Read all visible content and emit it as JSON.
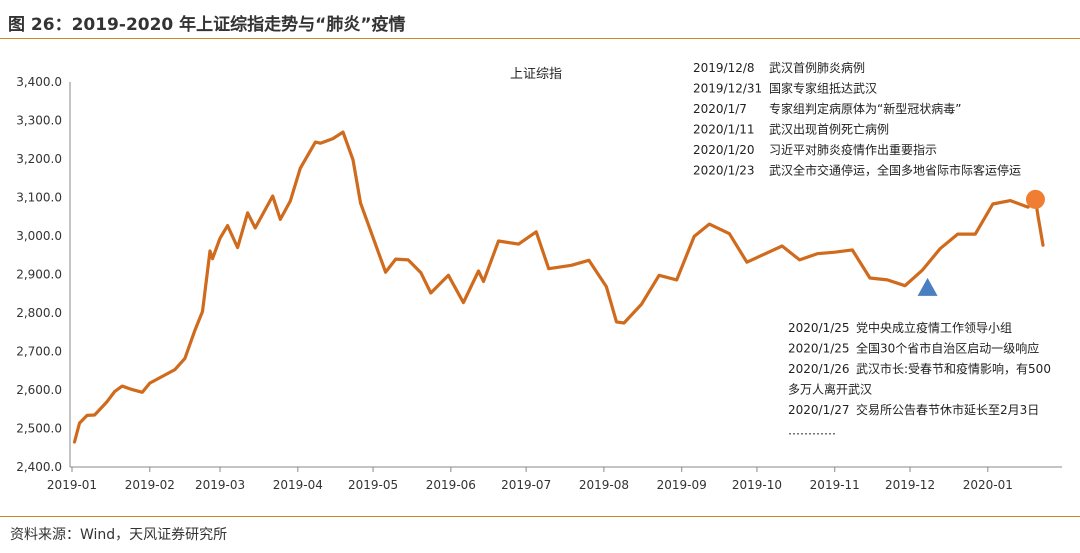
{
  "header": {
    "title": "图 26：2019-2020 年上证综指走势与“肺炎”疫情"
  },
  "source": "资料来源：Wind，天风证券研究所",
  "colors": {
    "line": "#d06a1c",
    "dot": "#ef7d32",
    "triangle": "#4a7fc1",
    "rule": "#c58a2a"
  },
  "annotations": {
    "top": [
      {
        "date": "2019/12/8",
        "text": "武汉首例肺炎病例"
      },
      {
        "date": "2019/12/31",
        "text": "国家专家组抵达武汉"
      },
      {
        "date": "2020/1/7",
        "text": "专家组判定病原体为“新型冠状病毒”"
      },
      {
        "date": "2020/1/11",
        "text": "武汉出现首例死亡病例"
      },
      {
        "date": "2020/1/20",
        "text": "习近平对肺炎疫情作出重要指示"
      },
      {
        "date": "2020/1/23",
        "text": "武汉全市交通停运，全国多地省际市际客运停运"
      }
    ],
    "bottom": [
      {
        "date": "2020/1/25",
        "text": "党中央成立疫情工作领导小组"
      },
      {
        "date": "2020/1/25",
        "text": "全国30个省市自治区启动一级响应"
      },
      {
        "date": "2020/1/26",
        "text": "武汉市长:受春节和疫情影响，有500"
      },
      {
        "date": "",
        "text": "多万人离开武汉"
      },
      {
        "date": "2020/1/27",
        "text": "交易所公告春节休市延长至2月3日"
      },
      {
        "date": "",
        "text": "…………"
      }
    ]
  },
  "chart_data": {
    "type": "line",
    "series_name": "上证综指",
    "ylim": [
      2400,
      3400
    ],
    "yticks": [
      "2,400.0",
      "2,500.0",
      "2,600.0",
      "2,700.0",
      "2,800.0",
      "2,900.0",
      "3,000.0",
      "3,100.0",
      "3,200.0",
      "3,300.0",
      "3,400.0"
    ],
    "yvalues": [
      2400,
      2500,
      2600,
      2700,
      2800,
      2900,
      3000,
      3100,
      3200,
      3300,
      3400
    ],
    "xticks": [
      "2019-01",
      "2019-02",
      "2019-03",
      "2019-04",
      "2019-05",
      "2019-06",
      "2019-07",
      "2019-08",
      "2019-09",
      "2019-10",
      "2019-11",
      "2019-12",
      "2020-01"
    ],
    "xlim": [
      "2019-01-01",
      "2020-01-23"
    ],
    "markers": [
      {
        "kind": "triangle",
        "date": "2019-12-08"
      },
      {
        "kind": "circle",
        "date": "2020-01-20"
      }
    ],
    "series": [
      {
        "x": [
          "2019-01-02",
          "2019-01-04",
          "2019-01-07",
          "2019-01-10",
          "2019-01-15",
          "2019-01-18",
          "2019-01-21",
          "2019-01-25",
          "2019-01-29",
          "2019-02-01",
          "2019-02-11",
          "2019-02-15",
          "2019-02-19",
          "2019-02-22",
          "2019-02-25",
          "2019-02-26",
          "2019-03-01",
          "2019-03-04",
          "2019-03-08",
          "2019-03-12",
          "2019-03-15",
          "2019-03-22",
          "2019-03-25",
          "2019-03-29",
          "2019-04-02",
          "2019-04-08",
          "2019-04-10",
          "2019-04-15",
          "2019-04-19",
          "2019-04-23",
          "2019-04-26",
          "2019-05-06",
          "2019-05-10",
          "2019-05-15",
          "2019-05-20",
          "2019-05-24",
          "2019-05-31",
          "2019-06-06",
          "2019-06-12",
          "2019-06-14",
          "2019-06-20",
          "2019-06-28",
          "2019-07-05",
          "2019-07-10",
          "2019-07-19",
          "2019-07-26",
          "2019-08-02",
          "2019-08-06",
          "2019-08-09",
          "2019-08-16",
          "2019-08-23",
          "2019-08-30",
          "2019-09-06",
          "2019-09-12",
          "2019-09-20",
          "2019-09-27",
          "2019-10-11",
          "2019-10-18",
          "2019-10-25",
          "2019-11-01",
          "2019-11-08",
          "2019-11-15",
          "2019-11-22",
          "2019-11-29",
          "2019-12-06",
          "2019-12-13",
          "2019-12-20",
          "2019-12-27",
          "2020-01-03",
          "2020-01-10",
          "2020-01-17",
          "2020-01-20",
          "2020-01-21",
          "2020-01-23"
        ],
        "values": [
          2465,
          2514,
          2534,
          2535,
          2570,
          2596,
          2610,
          2601,
          2594,
          2618,
          2653,
          2682,
          2755,
          2804,
          2961,
          2941,
          2994,
          3027,
          2970,
          3060,
          3021,
          3104,
          3043,
          3091,
          3176,
          3244,
          3241,
          3253,
          3270,
          3198,
          3086,
          2906,
          2940,
          2938,
          2905,
          2852,
          2898,
          2827,
          2909,
          2882,
          2987,
          2979,
          3011,
          2915,
          2924,
          2937,
          2868,
          2777,
          2774,
          2823,
          2898,
          2886,
          2999,
          3031,
          3006,
          2932,
          2974,
          2938,
          2954,
          2958,
          2964,
          2891,
          2886,
          2871,
          2912,
          2967,
          3005,
          3005,
          3083,
          3092,
          3075,
          3095,
          3052,
          2976
        ]
      }
    ]
  }
}
